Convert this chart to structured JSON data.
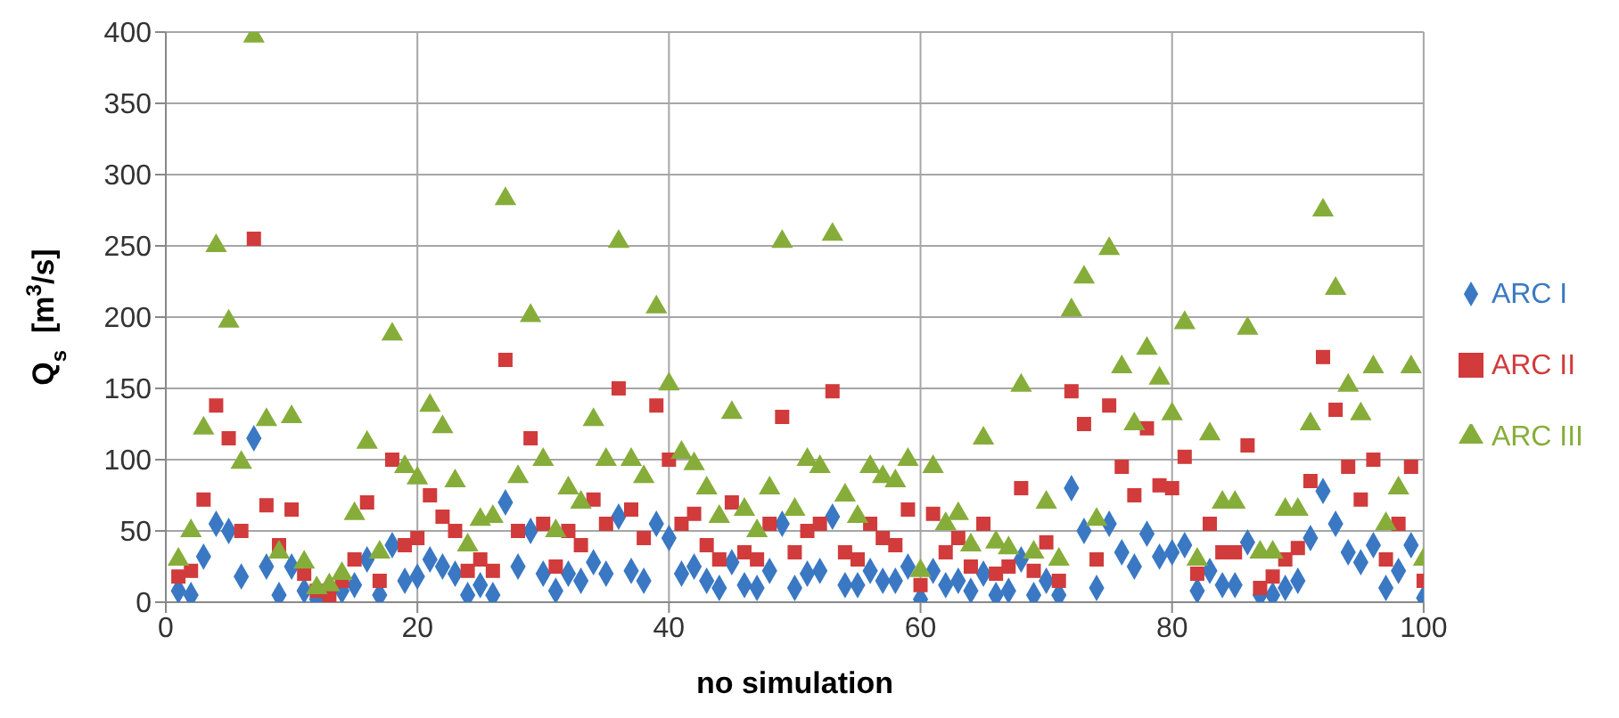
{
  "chart_data": {
    "type": "scatter",
    "xlabel": "no simulation",
    "ylabel": "Q$_{s}$  [m$^{3}$/s]",
    "x": [
      1,
      2,
      3,
      4,
      5,
      6,
      7,
      8,
      9,
      10,
      11,
      12,
      13,
      14,
      15,
      16,
      17,
      18,
      19,
      20,
      21,
      22,
      23,
      24,
      25,
      26,
      27,
      28,
      29,
      30,
      31,
      32,
      33,
      34,
      35,
      36,
      37,
      38,
      39,
      40,
      41,
      42,
      43,
      44,
      45,
      46,
      47,
      48,
      49,
      50,
      51,
      52,
      53,
      54,
      55,
      56,
      57,
      58,
      59,
      60,
      61,
      62,
      63,
      64,
      65,
      66,
      67,
      68,
      69,
      70,
      71,
      72,
      73,
      74,
      75,
      76,
      77,
      78,
      79,
      80,
      81,
      82,
      83,
      84,
      85,
      86,
      87,
      88,
      89,
      90,
      91,
      92,
      93,
      94,
      95,
      96,
      97,
      98,
      99,
      100
    ],
    "xlim": [
      0,
      100
    ],
    "xticks": [
      0,
      20,
      40,
      60,
      80,
      100
    ],
    "ylim": [
      0,
      400
    ],
    "yticks": [
      0,
      50,
      100,
      150,
      200,
      250,
      300,
      350,
      400
    ],
    "grid": true,
    "legend": "right",
    "series": [
      {
        "name": "ARC I",
        "color": "#3a78c3",
        "marker": "diamond",
        "values": [
          8,
          5,
          32,
          55,
          50,
          18,
          115,
          25,
          5,
          25,
          8,
          2,
          null,
          8,
          12,
          30,
          5,
          40,
          15,
          18,
          30,
          25,
          20,
          5,
          12,
          5,
          70,
          25,
          50,
          20,
          8,
          20,
          15,
          28,
          20,
          60,
          22,
          15,
          55,
          45,
          20,
          25,
          15,
          10,
          28,
          12,
          10,
          22,
          55,
          10,
          20,
          22,
          60,
          12,
          12,
          22,
          15,
          15,
          25,
          2,
          22,
          12,
          15,
          8,
          20,
          5,
          8,
          30,
          5,
          15,
          5,
          80,
          50,
          10,
          55,
          35,
          25,
          48,
          32,
          35,
          40,
          8,
          22,
          12,
          12,
          42,
          5,
          5,
          10,
          15,
          45,
          78,
          55,
          35,
          28,
          40,
          10,
          22,
          40,
          3
        ]
      },
      {
        "name": "ARC II",
        "color": "#d13b3b",
        "marker": "square",
        "values": [
          18,
          22,
          72,
          138,
          115,
          50,
          255,
          68,
          40,
          65,
          20,
          8,
          5,
          15,
          30,
          70,
          15,
          100,
          40,
          45,
          75,
          60,
          50,
          22,
          30,
          22,
          170,
          50,
          115,
          55,
          25,
          50,
          40,
          72,
          55,
          150,
          65,
          45,
          138,
          100,
          55,
          62,
          40,
          30,
          70,
          35,
          30,
          55,
          130,
          35,
          50,
          55,
          148,
          35,
          30,
          55,
          45,
          40,
          65,
          12,
          62,
          35,
          45,
          25,
          55,
          20,
          25,
          80,
          22,
          42,
          15,
          148,
          125,
          30,
          138,
          95,
          75,
          122,
          82,
          80,
          102,
          20,
          55,
          35,
          35,
          110,
          10,
          18,
          30,
          38,
          85,
          172,
          135,
          95,
          72,
          100,
          30,
          55,
          95,
          15
        ]
      },
      {
        "name": "ARC III",
        "color": "#86ad3a",
        "marker": "triangle",
        "values": [
          30,
          50,
          122,
          250,
          197,
          98,
          397,
          128,
          35,
          130,
          28,
          10,
          12,
          20,
          62,
          112,
          35,
          188,
          95,
          87,
          138,
          123,
          85,
          40,
          58,
          60,
          283,
          88,
          201,
          100,
          50,
          80,
          70,
          128,
          100,
          253,
          100,
          88,
          207,
          153,
          105,
          97,
          80,
          60,
          133,
          65,
          50,
          80,
          253,
          65,
          100,
          95,
          258,
          75,
          60,
          95,
          88,
          85,
          100,
          22,
          95,
          55,
          62,
          40,
          115,
          42,
          38,
          152,
          35,
          70,
          30,
          205,
          228,
          58,
          248,
          165,
          125,
          178,
          157,
          132,
          196,
          30,
          118,
          70,
          70,
          192,
          35,
          35,
          65,
          65,
          125,
          275,
          220,
          152,
          132,
          165,
          55,
          80,
          165,
          30
        ]
      }
    ]
  }
}
